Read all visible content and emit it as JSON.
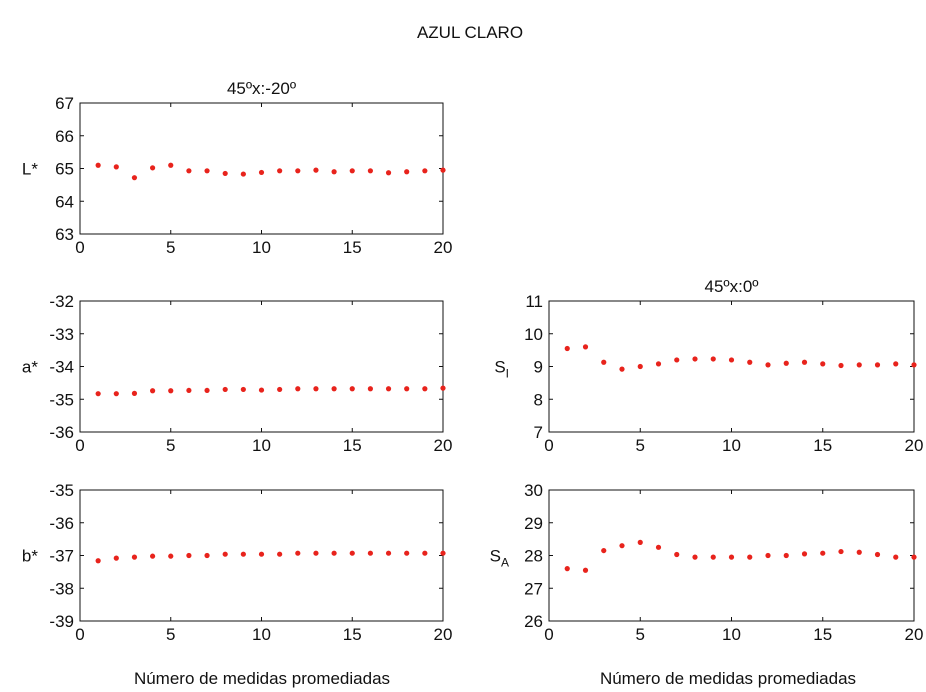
{
  "figure": {
    "title": "AZUL CLARO",
    "xlabel_left": "Número de medidas promediadas",
    "xlabel_right": "Número de medidas promediadas"
  },
  "colors": {
    "marker": "#e8231c",
    "axis": "#111111"
  },
  "chart_data": [
    {
      "id": "Lstar",
      "type": "scatter",
      "title": "45ºx:-20º",
      "ylabel": "L*",
      "ylabel_sub": "",
      "xlim": [
        0,
        20
      ],
      "ylim": [
        63,
        67
      ],
      "xticks": [
        0,
        5,
        10,
        15,
        20
      ],
      "yticks": [
        63,
        64,
        65,
        66,
        67
      ],
      "x": [
        1,
        2,
        3,
        4,
        5,
        6,
        7,
        8,
        9,
        10,
        11,
        12,
        13,
        14,
        15,
        16,
        17,
        18,
        19,
        20
      ],
      "y": [
        65.1,
        65.05,
        64.72,
        65.02,
        65.1,
        64.93,
        64.93,
        64.85,
        64.83,
        64.88,
        64.93,
        64.93,
        64.95,
        64.9,
        64.93,
        64.93,
        64.87,
        64.9,
        64.93,
        64.95
      ]
    },
    {
      "id": "astar",
      "type": "scatter",
      "title": "",
      "ylabel": "a*",
      "ylabel_sub": "",
      "xlim": [
        0,
        20
      ],
      "ylim": [
        -36,
        -32
      ],
      "xticks": [
        0,
        5,
        10,
        15,
        20
      ],
      "yticks": [
        -36,
        -35,
        -34,
        -33,
        -32
      ],
      "x": [
        1,
        2,
        3,
        4,
        5,
        6,
        7,
        8,
        9,
        10,
        11,
        12,
        13,
        14,
        15,
        16,
        17,
        18,
        19,
        20
      ],
      "y": [
        -34.83,
        -34.83,
        -34.82,
        -34.74,
        -34.74,
        -34.73,
        -34.73,
        -34.7,
        -34.7,
        -34.72,
        -34.7,
        -34.68,
        -34.68,
        -34.68,
        -34.68,
        -34.68,
        -34.68,
        -34.68,
        -34.68,
        -34.66
      ]
    },
    {
      "id": "bstar",
      "type": "scatter",
      "title": "",
      "ylabel": "b*",
      "ylabel_sub": "",
      "xlim": [
        0,
        20
      ],
      "ylim": [
        -39,
        -35
      ],
      "xticks": [
        0,
        5,
        10,
        15,
        20
      ],
      "yticks": [
        -39,
        -38,
        -37,
        -36,
        -35
      ],
      "x": [
        1,
        2,
        3,
        4,
        5,
        6,
        7,
        8,
        9,
        10,
        11,
        12,
        13,
        14,
        15,
        16,
        17,
        18,
        19,
        20
      ],
      "y": [
        -37.16,
        -37.08,
        -37.05,
        -37.02,
        -37.02,
        -37.0,
        -37.0,
        -36.96,
        -36.96,
        -36.96,
        -36.96,
        -36.93,
        -36.93,
        -36.93,
        -36.93,
        -36.93,
        -36.93,
        -36.93,
        -36.93,
        -36.93
      ]
    },
    {
      "id": "SI",
      "type": "scatter",
      "title": "45ºx:0º",
      "ylabel": "S",
      "ylabel_sub": "I",
      "xlim": [
        0,
        20
      ],
      "ylim": [
        7,
        11
      ],
      "xticks": [
        0,
        5,
        10,
        15,
        20
      ],
      "yticks": [
        7,
        8,
        9,
        10,
        11
      ],
      "x": [
        1,
        2,
        3,
        4,
        5,
        6,
        7,
        8,
        9,
        10,
        11,
        12,
        13,
        14,
        15,
        16,
        17,
        18,
        19,
        20
      ],
      "y": [
        9.55,
        9.6,
        9.13,
        8.92,
        9.0,
        9.08,
        9.2,
        9.23,
        9.23,
        9.2,
        9.13,
        9.05,
        9.1,
        9.13,
        9.08,
        9.03,
        9.05,
        9.05,
        9.08,
        9.05
      ]
    },
    {
      "id": "SA",
      "type": "scatter",
      "title": "",
      "ylabel": "S",
      "ylabel_sub": "A",
      "xlim": [
        0,
        20
      ],
      "ylim": [
        26,
        30
      ],
      "xticks": [
        0,
        5,
        10,
        15,
        20
      ],
      "yticks": [
        26,
        27,
        28,
        29,
        30
      ],
      "x": [
        1,
        2,
        3,
        4,
        5,
        6,
        7,
        8,
        9,
        10,
        11,
        12,
        13,
        14,
        15,
        16,
        17,
        18,
        19,
        20
      ],
      "y": [
        27.6,
        27.55,
        28.15,
        28.3,
        28.4,
        28.25,
        28.03,
        27.95,
        27.95,
        27.95,
        27.95,
        28.0,
        28.0,
        28.05,
        28.07,
        28.12,
        28.1,
        28.03,
        27.95,
        27.95
      ]
    }
  ]
}
